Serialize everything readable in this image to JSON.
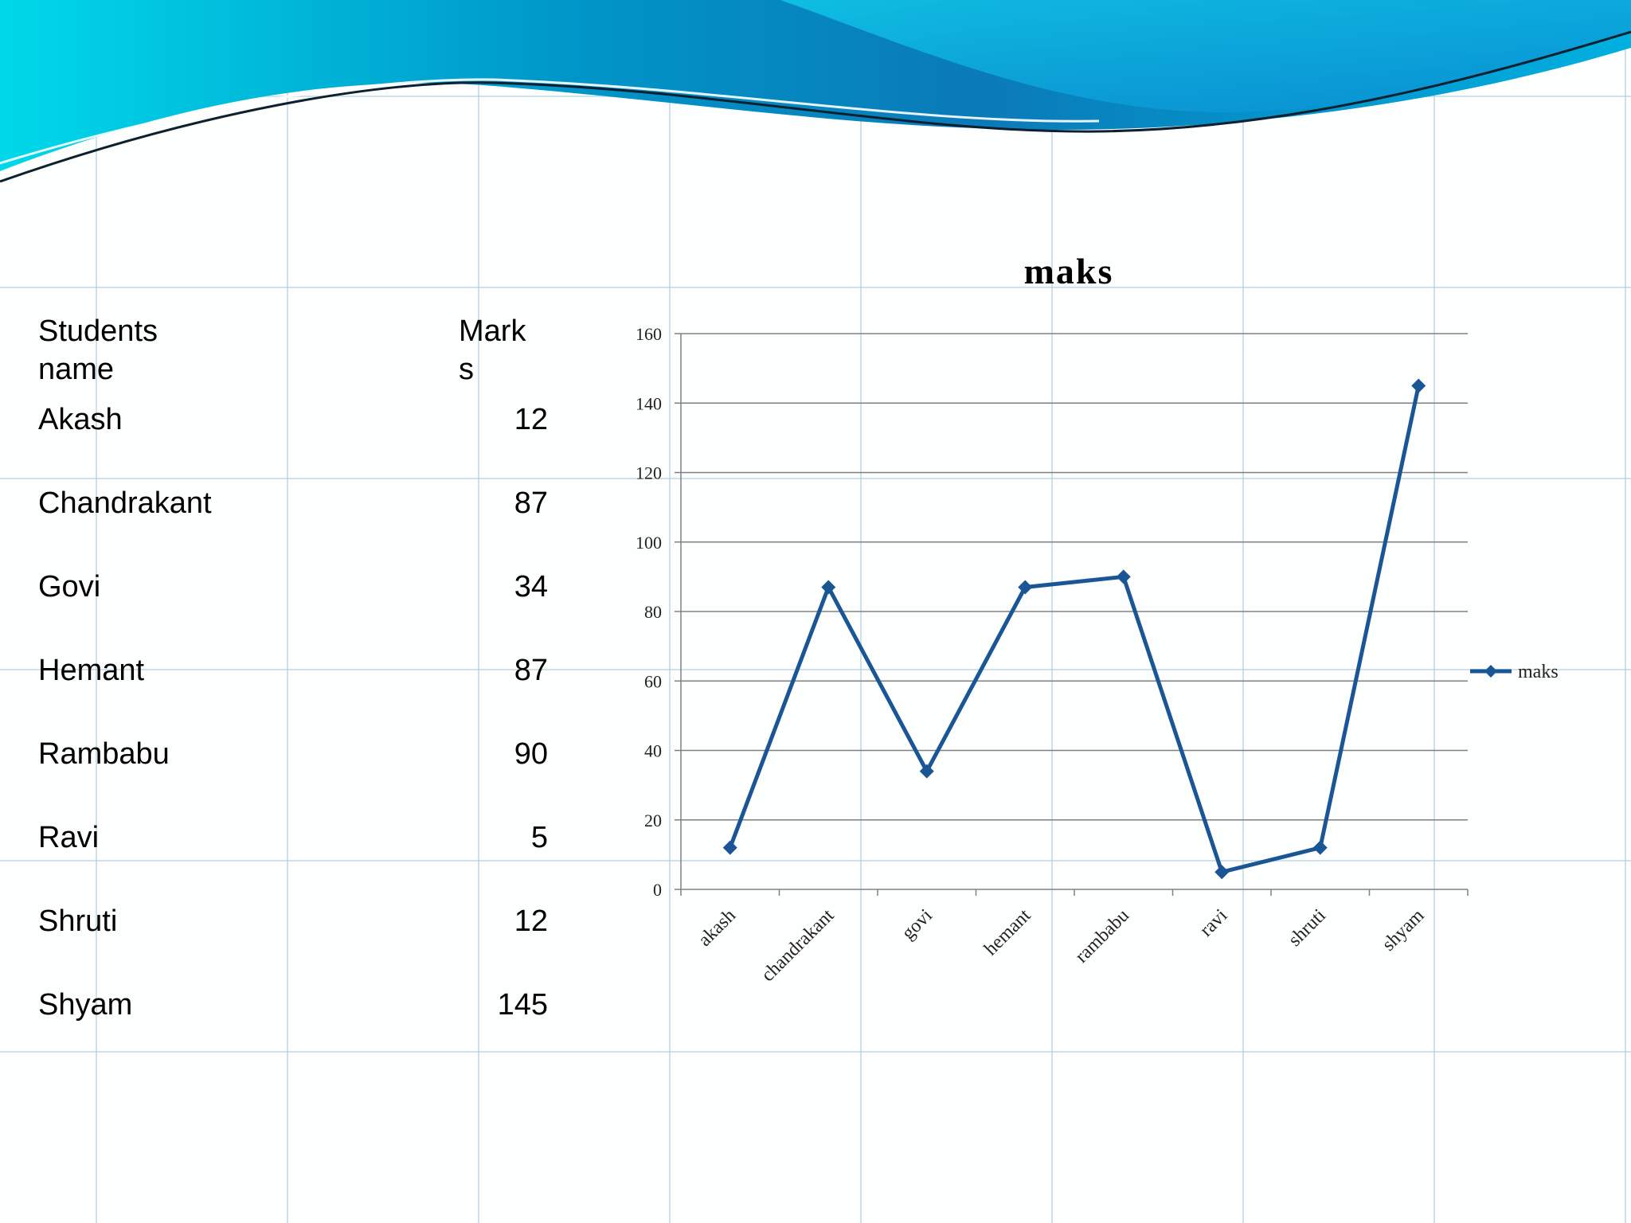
{
  "table": {
    "headers": [
      "Students name",
      "Marks"
    ],
    "rows": [
      {
        "name": "Akash",
        "marks": "12"
      },
      {
        "name": "Chandrakant",
        "marks": "87"
      },
      {
        "name": "Govi",
        "marks": "34"
      },
      {
        "name": "Hemant",
        "marks": "87"
      },
      {
        "name": "Rambabu",
        "marks": "90"
      },
      {
        "name": "Ravi",
        "marks": "5"
      },
      {
        "name": "Shruti",
        "marks": "12"
      },
      {
        "name": "Shyam",
        "marks": "145"
      }
    ]
  },
  "chart_data": {
    "type": "line",
    "title": "maks",
    "categories": [
      "akash",
      "chandrakant",
      "govi",
      "hemant",
      "rambabu",
      "ravi",
      "shruti",
      "shyam"
    ],
    "series": [
      {
        "name": "maks",
        "values": [
          12,
          87,
          34,
          87,
          90,
          5,
          12,
          145
        ],
        "color": "#1a5696"
      }
    ],
    "ylim": [
      0,
      160
    ],
    "yticks": [
      0,
      20,
      40,
      60,
      80,
      100,
      120,
      140,
      160
    ],
    "xlabel": "",
    "ylabel": "",
    "grid": true,
    "legend": "right"
  },
  "colors": {
    "wave_dark": "#0077b0",
    "wave_light": "#00c8e0",
    "gridline": "#808080"
  }
}
